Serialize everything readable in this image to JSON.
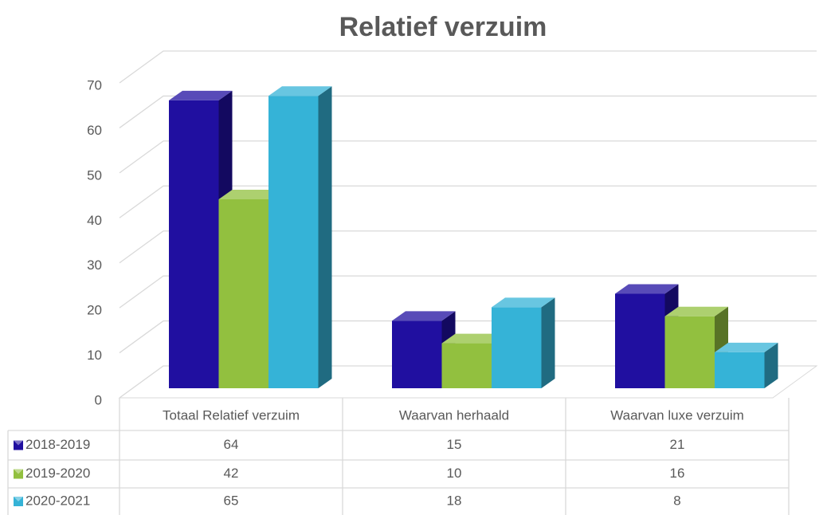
{
  "chart_data": {
    "type": "bar3d",
    "title": "Relatief verzuim",
    "categories": [
      "Totaal Relatief verzuim",
      "Waarvan herhaald",
      "Waarvan luxe verzuim"
    ],
    "series": [
      {
        "name": "2018-2019",
        "color": "#200fa0",
        "values": [
          64,
          15,
          21
        ]
      },
      {
        "name": "2019-2020",
        "color": "#92c03f",
        "values": [
          42,
          10,
          16
        ]
      },
      {
        "name": "2020-2021",
        "color": "#35b3d7",
        "values": [
          65,
          18,
          8
        ]
      }
    ],
    "ylim": [
      0,
      70
    ],
    "yticks": [
      0,
      10,
      20,
      30,
      40,
      50,
      60,
      70
    ],
    "grid": true,
    "data_table": true
  }
}
